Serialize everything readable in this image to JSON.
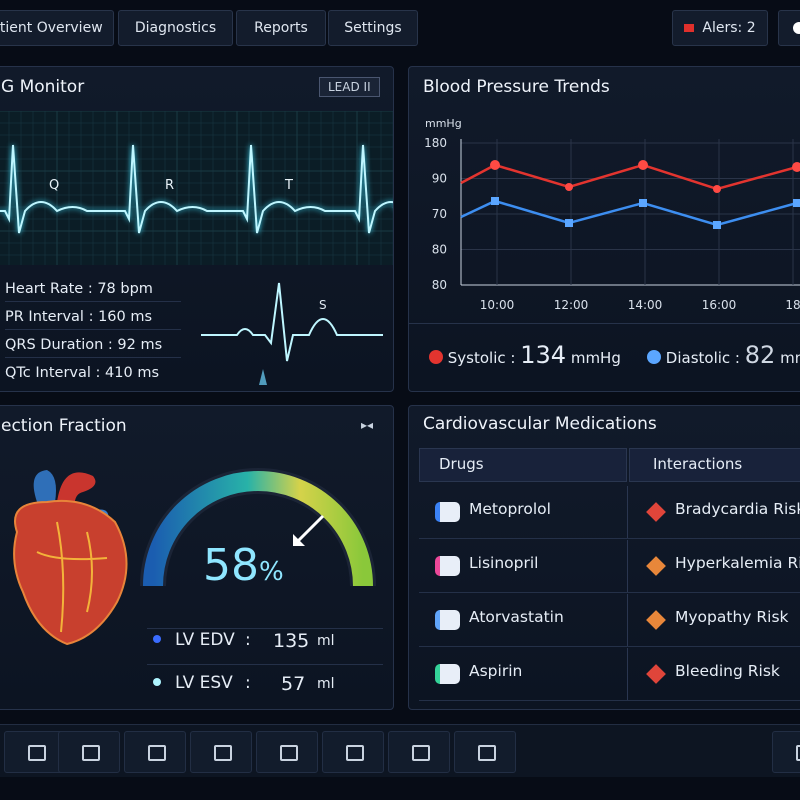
{
  "nav": {
    "tabs": [
      "atient Overview",
      "Diagnostics",
      "Reports",
      "Settings"
    ],
    "alerts": "Alers: 2"
  },
  "ecg": {
    "title": "G Monitor",
    "lead": "LEAD II",
    "wave_labels": [
      "Q",
      "R",
      "T"
    ],
    "mini_label": "S",
    "stats": [
      [
        "Heart Rate",
        "78 bpm"
      ],
      [
        "PR Interval",
        "160 ms"
      ],
      [
        "QRS Duration",
        "92 ms"
      ],
      [
        "QTc Interval",
        "410 ms"
      ]
    ]
  },
  "bp": {
    "title": "Blood Pressure Trends",
    "unit": "mmHg",
    "y_labels": [
      "180",
      "90",
      "70",
      "80",
      "80"
    ],
    "x_labels": [
      "10:00",
      "12:00",
      "14:00",
      "16:00",
      "18"
    ],
    "systolic": {
      "label": "Systolic",
      "value": "134",
      "unit": "mmHg"
    },
    "diastolic": {
      "label": "Diastolic",
      "value": "82",
      "unit": "mm"
    }
  },
  "ef": {
    "title": "ection Fraction",
    "value": "58",
    "unit": "%",
    "metrics": [
      {
        "label": "LV EDV",
        "value": "135",
        "unit": "ml"
      },
      {
        "label": "LV ESV",
        "value": "57",
        "unit": "ml"
      }
    ]
  },
  "meds": {
    "title": "Cardiovascular Medications",
    "headers": [
      "Drugs",
      "Interactions"
    ],
    "rows": [
      [
        "Metoprolol",
        "Bradycardia Risk"
      ],
      [
        "Lisinopril",
        "Hyperkalemia Risk"
      ],
      [
        "Atorvastatin",
        "Myopathy Risk"
      ],
      [
        "Aspirin",
        "Bleeding Risk"
      ]
    ]
  }
}
